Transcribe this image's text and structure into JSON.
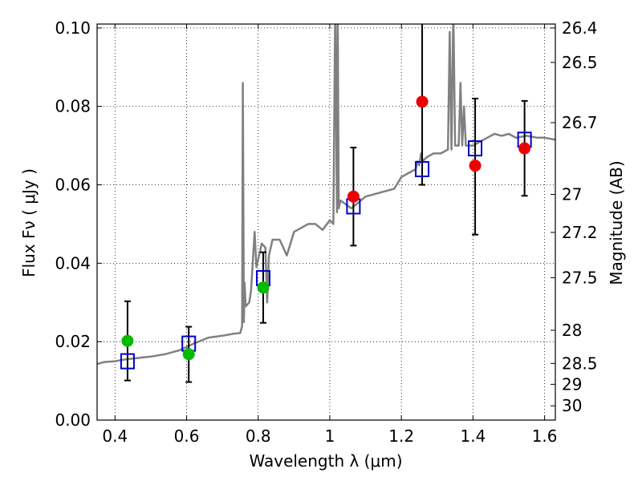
{
  "chart_data": {
    "type": "scatter",
    "xlabel": "Wavelength  λ (μm)",
    "ylabel": "Flux  Fν  ( μJy )",
    "y2label": "Magnitude (AB)",
    "xlim": [
      0.35,
      1.63
    ],
    "ylim": [
      0.0,
      0.101
    ],
    "x_ticks": [
      0.4,
      0.6,
      0.8,
      1.0,
      1.2,
      1.4,
      1.6
    ],
    "x_tick_labels": [
      "0.4",
      "0.6",
      "0.8",
      "1",
      "1.2",
      "1.4",
      "1.6"
    ],
    "y_ticks": [
      0.0,
      0.02,
      0.04,
      0.06,
      0.08,
      0.1
    ],
    "y_tick_labels": [
      "0.00",
      "0.02",
      "0.04",
      "0.06",
      "0.08",
      "0.10"
    ],
    "right_ticks": [
      {
        "label": "26.4",
        "mag": 26.4
      },
      {
        "label": "26.5",
        "mag": 26.5
      },
      {
        "label": "26.7",
        "mag": 26.7
      },
      {
        "label": "27",
        "mag": 27.0
      },
      {
        "label": "27.2",
        "mag": 27.2
      },
      {
        "label": "27.5",
        "mag": 27.5
      },
      {
        "label": "28",
        "mag": 28.0
      },
      {
        "label": "28.5",
        "mag": 28.5
      },
      {
        "label": "29",
        "mag": 29.0
      },
      {
        "label": "30",
        "mag": 30.0
      }
    ],
    "grid": true,
    "colors": {
      "spectrum": "#808080",
      "green": "#00bb00",
      "red": "#ee0000",
      "model_box": "#0000cc",
      "errorbar": "#000000"
    },
    "spectrum": {
      "x": [
        0.35,
        0.37,
        0.4,
        0.43,
        0.46,
        0.5,
        0.54,
        0.58,
        0.62,
        0.66,
        0.7,
        0.73,
        0.75,
        0.755,
        0.757,
        0.76,
        0.762,
        0.765,
        0.775,
        0.78,
        0.79,
        0.795,
        0.8,
        0.81,
        0.82,
        0.825,
        0.83,
        0.835,
        0.84,
        0.86,
        0.88,
        0.9,
        0.92,
        0.94,
        0.96,
        0.98,
        1.0,
        1.01,
        1.015,
        1.02,
        1.022,
        1.025,
        1.03,
        1.06,
        1.1,
        1.14,
        1.18,
        1.2,
        1.22,
        1.24,
        1.245,
        1.25,
        1.255,
        1.26,
        1.27,
        1.29,
        1.31,
        1.33,
        1.335,
        1.34,
        1.345,
        1.35,
        1.36,
        1.365,
        1.37,
        1.375,
        1.38,
        1.4,
        1.42,
        1.44,
        1.46,
        1.48,
        1.5,
        1.52,
        1.55,
        1.58,
        1.6,
        1.63
      ],
      "y": [
        0.0143,
        0.0148,
        0.015,
        0.0155,
        0.0158,
        0.0162,
        0.0168,
        0.0178,
        0.0195,
        0.021,
        0.0215,
        0.022,
        0.0222,
        0.024,
        0.086,
        0.025,
        0.035,
        0.029,
        0.03,
        0.033,
        0.048,
        0.039,
        0.041,
        0.045,
        0.044,
        0.03,
        0.042,
        0.044,
        0.046,
        0.046,
        0.042,
        0.048,
        0.049,
        0.05,
        0.05,
        0.0485,
        0.051,
        0.05,
        0.105,
        0.053,
        0.105,
        0.054,
        0.056,
        0.054,
        0.057,
        0.058,
        0.059,
        0.062,
        0.063,
        0.064,
        0.066,
        0.065,
        0.068,
        0.066,
        0.067,
        0.068,
        0.068,
        0.069,
        0.099,
        0.069,
        0.105,
        0.07,
        0.07,
        0.086,
        0.07,
        0.08,
        0.07,
        0.07,
        0.071,
        0.072,
        0.073,
        0.0725,
        0.073,
        0.072,
        0.0725,
        0.072,
        0.072,
        0.0715
      ]
    },
    "series": [
      {
        "marker": "circle",
        "color": "#00bb00",
        "points": [
          {
            "x": 0.435,
            "y": 0.0202,
            "yerr": [
              0.0101,
              0.0303
            ]
          },
          {
            "x": 0.606,
            "y": 0.0168,
            "yerr": [
              0.0097,
              0.0238
            ]
          },
          {
            "x": 0.814,
            "y": 0.0338,
            "yerr": [
              0.0248,
              0.0428
            ]
          }
        ]
      },
      {
        "marker": "circle",
        "color": "#ee0000",
        "points": [
          {
            "x": 1.066,
            "y": 0.057,
            "yerr": [
              0.0445,
              0.0695
            ]
          },
          {
            "x": 1.258,
            "y": 0.0812,
            "yerr": [
              0.06,
              0.102
            ]
          },
          {
            "x": 1.406,
            "y": 0.0649,
            "yerr": [
              0.0473,
              0.082
            ]
          },
          {
            "x": 1.544,
            "y": 0.0693,
            "yerr": [
              0.0572,
              0.0814
            ]
          }
        ]
      },
      {
        "marker": "square",
        "color": "#0000cc",
        "points": [
          {
            "x": 0.435,
            "y": 0.015
          },
          {
            "x": 0.606,
            "y": 0.0195
          },
          {
            "x": 0.814,
            "y": 0.0362
          },
          {
            "x": 1.066,
            "y": 0.0545
          },
          {
            "x": 1.258,
            "y": 0.064
          },
          {
            "x": 1.406,
            "y": 0.0693
          },
          {
            "x": 1.544,
            "y": 0.0715
          }
        ]
      }
    ]
  }
}
